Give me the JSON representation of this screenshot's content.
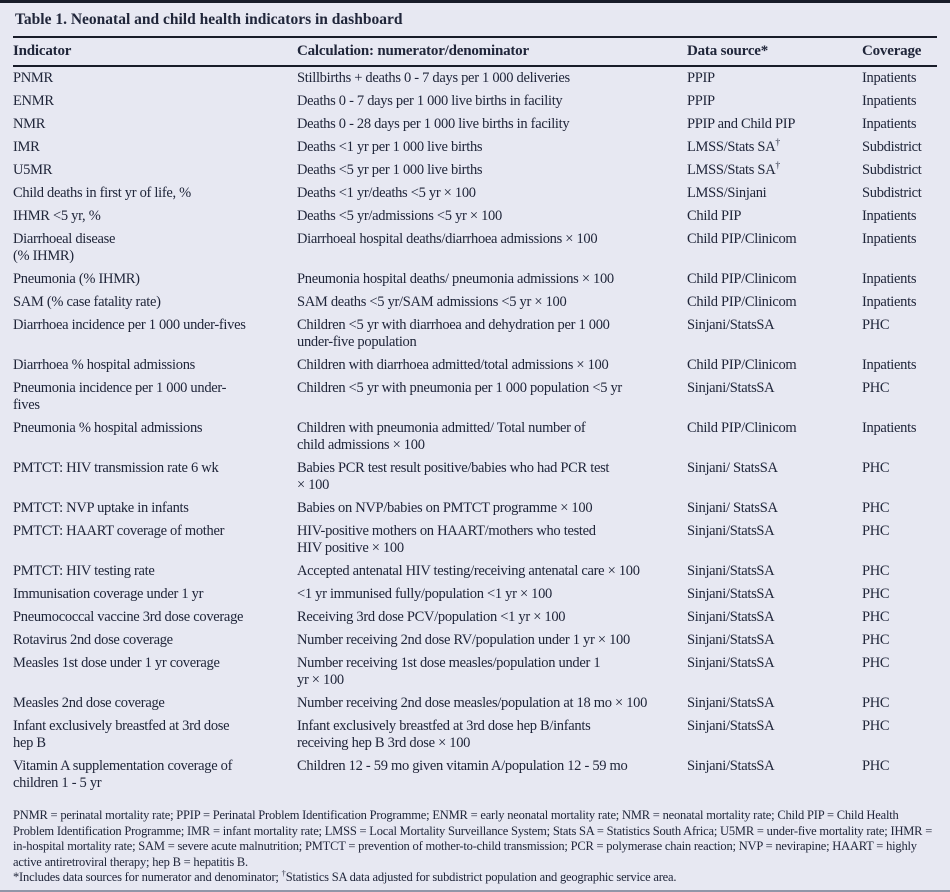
{
  "table": {
    "title": "Table 1. Neonatal and child health indicators in dashboard",
    "columns": [
      "Indicator",
      "Calculation: numerator/denominator",
      "Data source*",
      "Coverage"
    ],
    "rows": [
      {
        "indicator": "PNMR",
        "calculation": "Stillbirths + deaths 0 - 7 days per 1 000 deliveries",
        "source": "PPIP",
        "coverage": "Inpatients"
      },
      {
        "indicator": "ENMR",
        "calculation": "Deaths 0 - 7 days per 1 000 live births in facility",
        "source": "PPIP",
        "coverage": "Inpatients"
      },
      {
        "indicator": "NMR",
        "calculation": "Deaths 0 - 28 days per 1 000 live births in facility",
        "source": "PPIP and Child PIP",
        "coverage": "Inpatients"
      },
      {
        "indicator": "IMR",
        "calculation": "Deaths <1 yr per 1 000 live births",
        "source": "LMSS/Stats SA†",
        "coverage": "Subdistrict"
      },
      {
        "indicator": "U5MR",
        "calculation": "Deaths <5 yr per 1 000 live births",
        "source": "LMSS/Stats SA†",
        "coverage": "Subdistrict"
      },
      {
        "indicator": "Child deaths in first yr of life, %",
        "calculation": "Deaths <1 yr/deaths <5 yr × 100",
        "source": "LMSS/Sinjani",
        "coverage": "Subdistrict"
      },
      {
        "indicator": "IHMR <5 yr, %",
        "calculation": "Deaths <5 yr/admissions <5 yr × 100",
        "source": "Child PIP",
        "coverage": "Inpatients"
      },
      {
        "indicator": "Diarrhoeal disease\n(% IHMR)",
        "calculation": "Diarrhoeal hospital deaths/diarrhoea admissions × 100",
        "source": "Child PIP/Clinicom",
        "coverage": "Inpatients"
      },
      {
        "indicator": "Pneumonia (% IHMR)",
        "calculation": "Pneumonia hospital deaths/ pneumonia admissions × 100",
        "source": "Child PIP/Clinicom",
        "coverage": "Inpatients"
      },
      {
        "indicator": "SAM (% case fatality rate)",
        "calculation": "SAM deaths <5 yr/SAM admissions <5 yr × 100",
        "source": "Child PIP/Clinicom",
        "coverage": "Inpatients"
      },
      {
        "indicator": "Diarrhoea incidence per 1 000 under-fives",
        "calculation": "Children <5 yr with diarrhoea and dehydration per 1 000\nunder-five population",
        "source": "Sinjani/StatsSA",
        "coverage": "PHC"
      },
      {
        "indicator": "Diarrhoea % hospital admissions",
        "calculation": "Children with diarrhoea admitted/total admissions × 100",
        "source": "Child PIP/Clinicom",
        "coverage": "Inpatients"
      },
      {
        "indicator": "Pneumonia incidence per 1 000 under-\nfives",
        "calculation": "Children <5 yr with pneumonia per 1 000 population <5 yr",
        "source": "Sinjani/StatsSA",
        "coverage": "PHC"
      },
      {
        "indicator": "Pneumonia % hospital admissions",
        "calculation": "Children with pneumonia admitted/ Total number of\nchild admissions × 100",
        "source": "Child PIP/Clinicom",
        "coverage": "Inpatients"
      },
      {
        "indicator": "PMTCT: HIV transmission rate 6 wk",
        "calculation": "Babies PCR test result positive/babies who had PCR test\n× 100",
        "source": "Sinjani/ StatsSA",
        "coverage": "PHC"
      },
      {
        "indicator": "PMTCT: NVP uptake in infants",
        "calculation": "Babies on NVP/babies on PMTCT programme × 100",
        "source": "Sinjani/ StatsSA",
        "coverage": "PHC"
      },
      {
        "indicator": "PMTCT: HAART coverage of mother",
        "calculation": "HIV-positive mothers on HAART/mothers who tested\nHIV positive × 100",
        "source": "Sinjani/StatsSA",
        "coverage": "PHC"
      },
      {
        "indicator": "PMTCT: HIV testing rate",
        "calculation": "Accepted antenatal HIV testing/receiving antenatal care × 100",
        "source": "Sinjani/StatsSA",
        "coverage": "PHC"
      },
      {
        "indicator": "Immunisation coverage under 1 yr",
        "calculation": "<1 yr immunised fully/population <1 yr × 100",
        "source": "Sinjani/StatsSA",
        "coverage": "PHC"
      },
      {
        "indicator": "Pneumococcal vaccine 3rd dose coverage",
        "calculation": "Receiving 3rd dose PCV/population <1 yr × 100",
        "source": "Sinjani/StatsSA",
        "coverage": "PHC"
      },
      {
        "indicator": "Rotavirus 2nd dose coverage",
        "calculation": "Number receiving 2nd dose RV/population under 1 yr × 100",
        "source": "Sinjani/StatsSA",
        "coverage": "PHC"
      },
      {
        "indicator": "Measles 1st dose under 1 yr coverage",
        "calculation": "Number receiving 1st dose measles/population under 1\nyr × 100",
        "source": "Sinjani/StatsSA",
        "coverage": "PHC"
      },
      {
        "indicator": "Measles 2nd dose coverage",
        "calculation": "Number receiving 2nd dose measles/population at 18 mo × 100",
        "source": "Sinjani/StatsSA",
        "coverage": "PHC"
      },
      {
        "indicator": "Infant exclusively breastfed at 3rd dose\nhep B",
        "calculation": "Infant exclusively breastfed at 3rd dose hep B/infants\nreceiving hep B 3rd dose × 100",
        "source": "Sinjani/StatsSA",
        "coverage": "PHC"
      },
      {
        "indicator": "Vitamin A supplementation coverage of\nchildren 1 - 5 yr",
        "calculation": "Children 12 - 59 mo given vitamin A/population 12 - 59 mo",
        "source": "Sinjani/StatsSA",
        "coverage": "PHC"
      }
    ],
    "footnotes": {
      "abbreviations": "PNMR = perinatal mortality rate; PPIP = Perinatal Problem Identification Programme; ENMR = early neonatal mortality rate; NMR = neonatal mortality rate; Child PIP = Child Health Problem Identification Programme; IMR = infant mortality rate; LMSS = Local Mortality Surveillance System; Stats SA = Statistics South Africa; U5MR = under-five mortality rate; IHMR = in-hospital mortality rate; SAM = severe acute malnutrition; PMTCT = prevention of mother-to-child transmission; PCR = polymerase chain reaction; NVP = nevirapine; HAART = highly active antiretroviral therapy; hep B = hepatitis B.",
      "symbols": "*Includes data sources for numerator and denominator; †Statistics SA data adjusted for subdistrict population and geographic service area."
    }
  },
  "colors": {
    "background": "#e7e8f2",
    "text": "#20263a",
    "rule": "#181c29"
  }
}
